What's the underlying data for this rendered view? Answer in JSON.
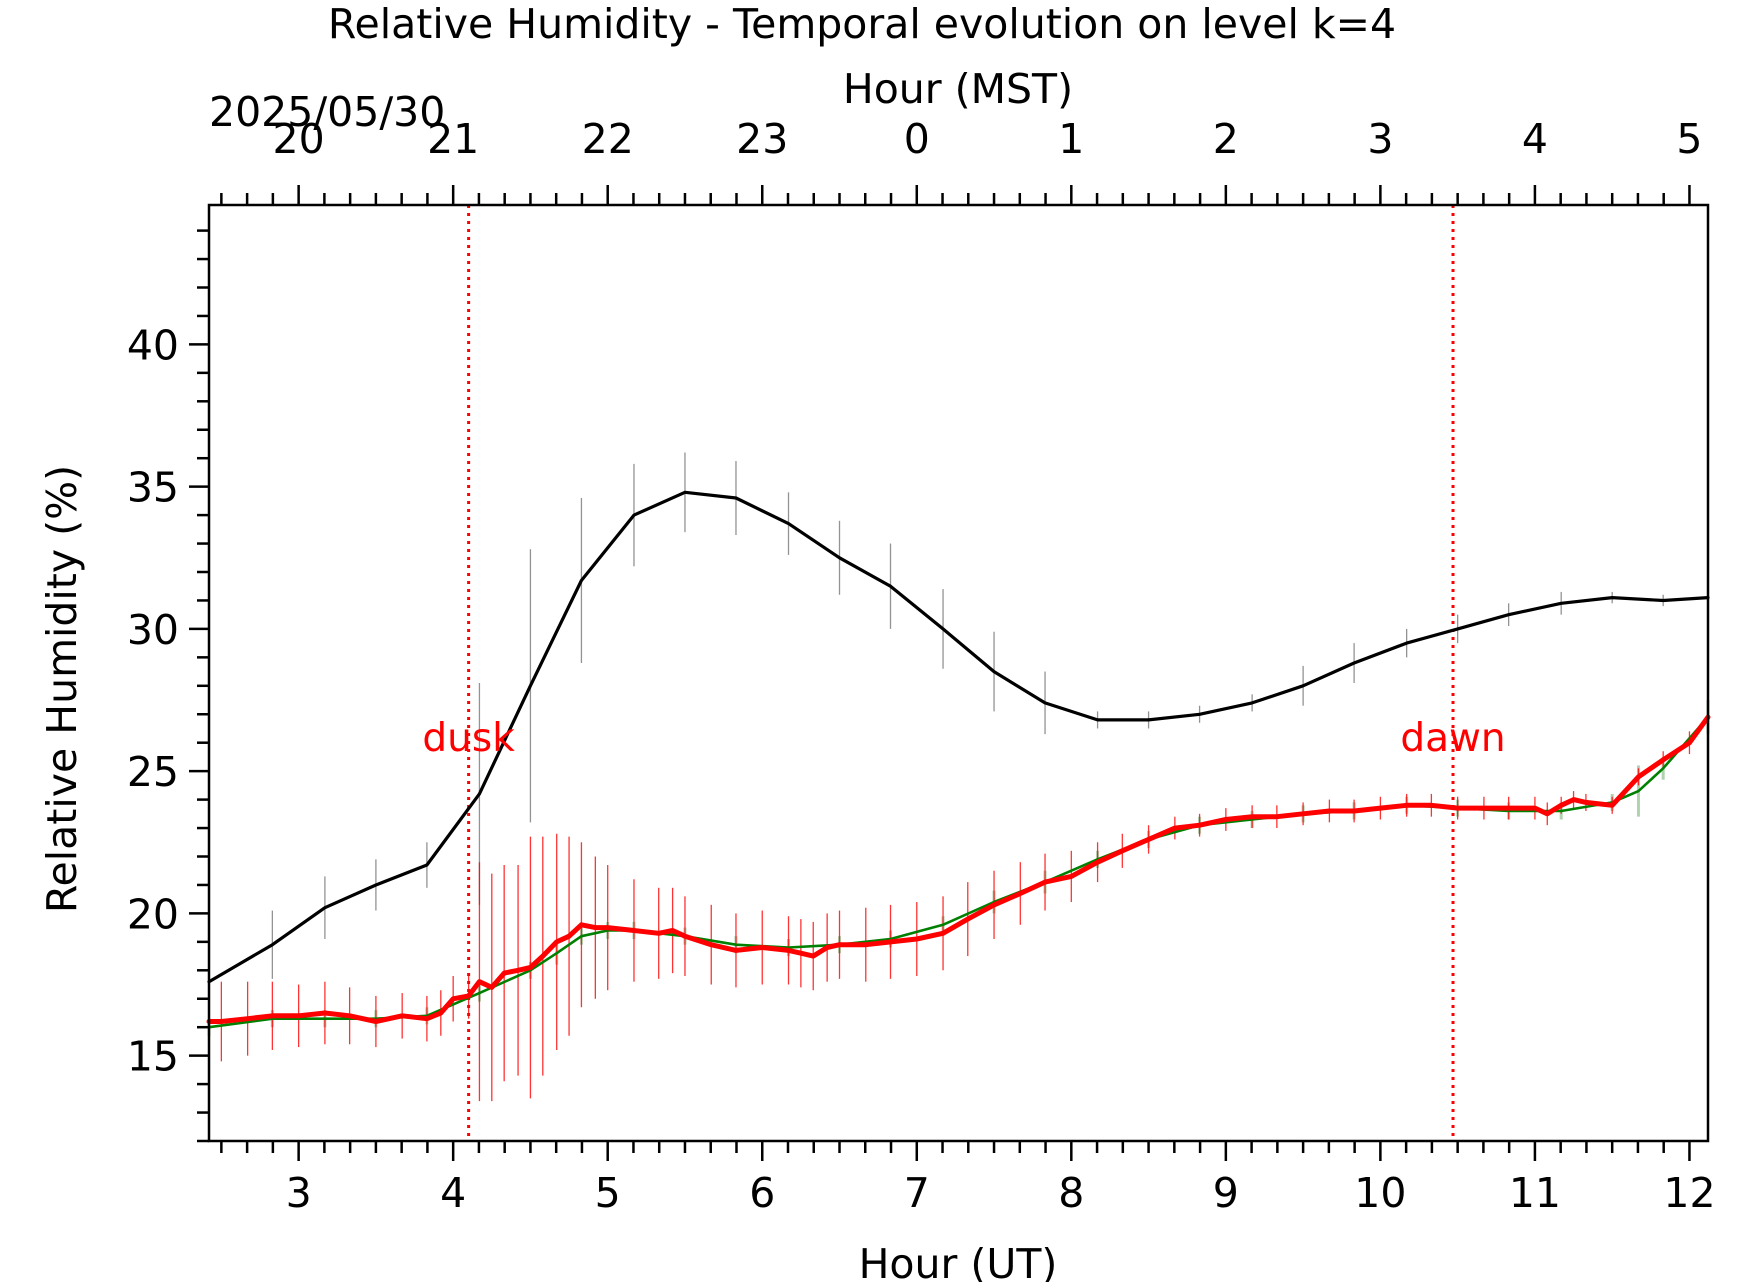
{
  "chart_data": {
    "type": "line",
    "title": "Relative Humidity - Temporal evolution on level k=4",
    "xlabel": "Hour (UT)",
    "x2label": "Hour (MST)",
    "date_label": "2025/05/30",
    "ylabel": "Relative Humidity (%)",
    "xlim": [
      2.42,
      12.12
    ],
    "ylim": [
      12.0,
      44.9
    ],
    "x_ticks": [
      3,
      4,
      5,
      6,
      7,
      8,
      9,
      10,
      11,
      12
    ],
    "x2_tick_labels": [
      "20",
      "21",
      "22",
      "23",
      "0",
      "1",
      "2",
      "3",
      "4",
      "5"
    ],
    "y_ticks": [
      15,
      20,
      25,
      30,
      35,
      40
    ],
    "grid": false,
    "annotations": [
      {
        "text": "dusk",
        "x": 4.1,
        "y": 25.7,
        "color": "#ff0000"
      },
      {
        "text": "dawn",
        "x": 10.47,
        "y": 25.7,
        "color": "#ff0000"
      }
    ],
    "vlines": [
      {
        "x": 4.1,
        "color": "#ff0000",
        "style": "dotted"
      },
      {
        "x": 10.47,
        "color": "#ff0000",
        "style": "dotted"
      }
    ],
    "series": [
      {
        "color": "#000000",
        "line_width": 3.2,
        "x": [
          2.42,
          2.83,
          3.17,
          3.5,
          3.83,
          4.17,
          4.5,
          4.83,
          5.17,
          5.5,
          5.83,
          6.17,
          6.5,
          6.83,
          7.17,
          7.5,
          7.83,
          8.17,
          8.5,
          8.83,
          9.17,
          9.5,
          9.83,
          10.17,
          10.5,
          10.83,
          11.17,
          11.5,
          11.83,
          12.12
        ],
        "y": [
          17.6,
          18.9,
          20.2,
          21.0,
          21.7,
          24.2,
          28.0,
          31.7,
          34.0,
          34.8,
          34.6,
          33.7,
          32.5,
          31.5,
          30.0,
          28.5,
          27.4,
          26.8,
          26.8,
          27.0,
          27.4,
          28.0,
          28.8,
          29.5,
          30.0,
          30.5,
          30.9,
          31.1,
          31.0,
          31.1
        ],
        "errors": [
          1.6,
          1.2,
          1.1,
          0.9,
          0.8,
          3.9,
          4.8,
          2.9,
          1.8,
          1.4,
          1.3,
          1.1,
          1.3,
          1.5,
          1.4,
          1.4,
          1.1,
          0.3,
          0.3,
          0.3,
          0.3,
          0.7,
          0.7,
          0.5,
          0.5,
          0.4,
          0.4,
          0.2,
          0.2,
          0.2
        ],
        "error_color": "#808080"
      },
      {
        "color": "#008000",
        "line_width": 2.6,
        "x": [
          2.42,
          2.83,
          3.17,
          3.5,
          3.83,
          4.17,
          4.5,
          4.67,
          4.83,
          5.0,
          5.17,
          5.5,
          5.83,
          6.17,
          6.5,
          6.83,
          7.17,
          7.5,
          7.83,
          8.17,
          8.5,
          8.83,
          9.17,
          9.5,
          9.83,
          10.17,
          10.5,
          10.83,
          11.17,
          11.5,
          11.67,
          11.83,
          12.12
        ],
        "y": [
          16.0,
          16.3,
          16.3,
          16.3,
          16.4,
          17.2,
          18.0,
          18.6,
          19.2,
          19.4,
          19.4,
          19.2,
          18.9,
          18.8,
          18.9,
          19.1,
          19.6,
          20.4,
          21.1,
          21.9,
          22.6,
          23.1,
          23.3,
          23.5,
          23.6,
          23.8,
          23.7,
          23.6,
          23.6,
          23.9,
          24.3,
          25.1,
          26.9
        ],
        "errors": [
          0.3,
          0.3,
          0.3,
          0.3,
          0.3,
          0.3,
          0.3,
          0.4,
          0.3,
          0.3,
          0.3,
          0.3,
          0.3,
          0.3,
          0.3,
          0.3,
          0.3,
          0.4,
          0.4,
          0.3,
          0.3,
          0.3,
          0.3,
          0.3,
          0.3,
          0.3,
          0.3,
          0.3,
          0.3,
          0.3,
          0.9,
          0.4,
          0.6
        ],
        "error_color": "#8fbf8f"
      },
      {
        "color": "#ff0000",
        "line_width": 5,
        "x": [
          2.42,
          2.5,
          2.67,
          2.83,
          3.0,
          3.17,
          3.33,
          3.5,
          3.67,
          3.83,
          3.92,
          4.0,
          4.1,
          4.17,
          4.25,
          4.33,
          4.42,
          4.5,
          4.58,
          4.67,
          4.75,
          4.83,
          4.92,
          5.0,
          5.17,
          5.33,
          5.42,
          5.5,
          5.67,
          5.83,
          6.0,
          6.17,
          6.25,
          6.33,
          6.42,
          6.5,
          6.67,
          6.83,
          7.0,
          7.17,
          7.33,
          7.5,
          7.67,
          7.83,
          8.0,
          8.17,
          8.33,
          8.5,
          8.67,
          8.83,
          9.0,
          9.17,
          9.33,
          9.5,
          9.67,
          9.83,
          10.0,
          10.17,
          10.33,
          10.5,
          10.67,
          10.83,
          11.0,
          11.08,
          11.17,
          11.25,
          11.33,
          11.5,
          11.67,
          11.83,
          12.0,
          12.12
        ],
        "y": [
          16.2,
          16.2,
          16.3,
          16.4,
          16.4,
          16.5,
          16.4,
          16.2,
          16.4,
          16.3,
          16.5,
          17.0,
          17.1,
          17.6,
          17.4,
          17.9,
          18.0,
          18.1,
          18.5,
          19.0,
          19.2,
          19.6,
          19.5,
          19.5,
          19.4,
          19.3,
          19.4,
          19.2,
          18.9,
          18.7,
          18.8,
          18.7,
          18.6,
          18.5,
          18.8,
          18.9,
          18.9,
          19.0,
          19.1,
          19.3,
          19.8,
          20.3,
          20.7,
          21.1,
          21.3,
          21.8,
          22.2,
          22.6,
          23.0,
          23.1,
          23.3,
          23.4,
          23.4,
          23.5,
          23.6,
          23.6,
          23.7,
          23.8,
          23.8,
          23.7,
          23.7,
          23.7,
          23.7,
          23.5,
          23.8,
          24.0,
          23.9,
          23.8,
          24.8,
          25.4,
          26.0,
          26.9
        ],
        "errors": [
          1.4,
          1.4,
          1.3,
          1.2,
          1.1,
          1.1,
          1.0,
          0.9,
          0.8,
          0.8,
          0.8,
          0.8,
          0.8,
          4.2,
          4.0,
          3.8,
          3.7,
          4.6,
          4.2,
          3.8,
          3.5,
          2.9,
          2.5,
          2.2,
          1.8,
          1.6,
          1.5,
          1.4,
          1.4,
          1.3,
          1.3,
          1.2,
          1.2,
          1.2,
          1.2,
          1.2,
          1.3,
          1.3,
          1.3,
          1.3,
          1.3,
          1.2,
          1.1,
          1.0,
          0.9,
          0.7,
          0.6,
          0.5,
          0.4,
          0.4,
          0.4,
          0.4,
          0.4,
          0.4,
          0.4,
          0.4,
          0.4,
          0.4,
          0.4,
          0.4,
          0.4,
          0.4,
          0.4,
          0.4,
          0.3,
          0.3,
          0.3,
          0.3,
          0.3,
          0.3,
          0.4,
          0.4
        ],
        "error_color": "#ff0000"
      }
    ]
  }
}
